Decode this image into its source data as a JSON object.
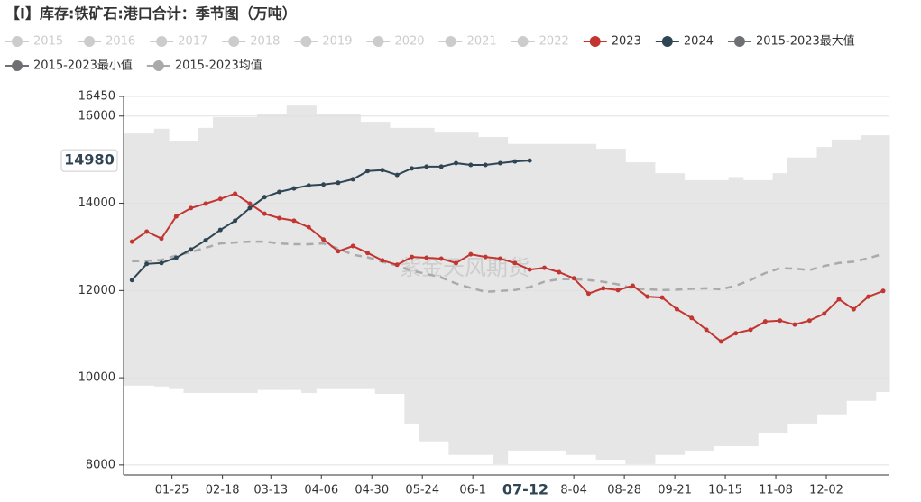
{
  "chart_data": {
    "type": "line",
    "title": "【I】库存:铁矿石:港口合计：季节图（万吨）",
    "watermark": "紫金天风期货",
    "legend_inactive": [
      "2015",
      "2016",
      "2017",
      "2018",
      "2019",
      "2020",
      "2021",
      "2022"
    ],
    "inactive_color": "#cccccc",
    "band": [
      2,
      3
    ],
    "band_color": "#e6e6e6",
    "dashed": [
      4
    ],
    "grid": true,
    "x": [
      6,
      13,
      20,
      27,
      34,
      41,
      48,
      55,
      62,
      69,
      76,
      83,
      90,
      97,
      104,
      111,
      118,
      125,
      132,
      139,
      146,
      153,
      160,
      167,
      174,
      181,
      188,
      195,
      202,
      209,
      216,
      223,
      230,
      237,
      244,
      251,
      258,
      265,
      272,
      279,
      286,
      293,
      300,
      307,
      314,
      321,
      328,
      335,
      342,
      349,
      356,
      363
    ],
    "xlim": [
      2,
      366
    ],
    "xticks": [
      {
        "value": 25,
        "label": "01-25"
      },
      {
        "value": 49,
        "label": "02-18"
      },
      {
        "value": 72,
        "label": "03-13"
      },
      {
        "value": 96,
        "label": "04-06"
      },
      {
        "value": 120,
        "label": "04-30"
      },
      {
        "value": 144,
        "label": "05-24"
      },
      {
        "value": 168,
        "label": "06-1"
      },
      {
        "value": 216,
        "label": "8-04"
      },
      {
        "value": 240,
        "label": "08-28"
      },
      {
        "value": 264,
        "label": "09-21"
      },
      {
        "value": 288,
        "label": "10-15"
      },
      {
        "value": 312,
        "label": "11-08"
      },
      {
        "value": 336,
        "label": "12-02"
      }
    ],
    "ylim": [
      7770,
      16450
    ],
    "yticks": [
      8000,
      10000,
      12000,
      14000,
      16000,
      16450
    ],
    "pointer": {
      "x": {
        "value": 193,
        "label": "07-12"
      },
      "y": 14980
    },
    "series": [
      {
        "name": "2023",
        "color": "#c23531",
        "values": [
          13120,
          13350,
          13190,
          13700,
          13890,
          13990,
          14100,
          14220,
          13990,
          13760,
          13660,
          13600,
          13450,
          13170,
          12900,
          13020,
          12860,
          12690,
          12590,
          12770,
          12750,
          12730,
          12630,
          12830,
          12770,
          12730,
          12630,
          12480,
          12520,
          12420,
          12280,
          11930,
          12050,
          12010,
          12110,
          11860,
          11840,
          11570,
          11370,
          11100,
          10830,
          11020,
          11100,
          11290,
          11310,
          11220,
          11310,
          11470,
          11800,
          11570,
          11860,
          11990
        ]
      },
      {
        "name": "2024",
        "color": "#2f4554",
        "values": [
          12240,
          12610,
          12630,
          12750,
          12940,
          13150,
          13390,
          13600,
          13890,
          14140,
          14260,
          14340,
          14410,
          14430,
          14470,
          14550,
          14740,
          14760,
          14650,
          14800,
          14840,
          14840,
          14920,
          14880,
          14880,
          14920,
          14960,
          14980,
          null,
          null,
          null,
          null,
          null,
          null,
          null,
          null,
          null,
          null,
          null,
          null,
          null,
          null,
          null,
          null,
          null,
          null,
          null,
          null,
          null,
          null,
          null,
          null
        ]
      },
      {
        "name": "2015-2023最大值",
        "color": "#6e7074",
        "values": [
          15600,
          15600,
          15710,
          15420,
          15420,
          15730,
          15975,
          15975,
          15975,
          16040,
          16040,
          16240,
          16240,
          16040,
          16040,
          16040,
          15870,
          15870,
          15730,
          15730,
          15730,
          15620,
          15620,
          15620,
          15520,
          15520,
          15360,
          15360,
          15360,
          15360,
          15360,
          15360,
          15250,
          15250,
          14940,
          14940,
          14690,
          14690,
          14530,
          14530,
          14530,
          14600,
          14530,
          14530,
          14690,
          15050,
          15050,
          15290,
          15460,
          15460,
          15560,
          15560
        ]
      },
      {
        "name": "2015-2023最小值",
        "color": "#6e7074",
        "values": [
          9820,
          9820,
          9800,
          9740,
          9650,
          9650,
          9650,
          9650,
          9650,
          9720,
          9720,
          9720,
          9650,
          9740,
          9740,
          9740,
          9740,
          9630,
          9630,
          8950,
          8540,
          8540,
          8230,
          8230,
          8230,
          8020,
          8330,
          8330,
          8330,
          8330,
          8230,
          8230,
          8120,
          8120,
          8020,
          8020,
          8230,
          8230,
          8330,
          8330,
          8430,
          8430,
          8430,
          8740,
          8740,
          8950,
          8950,
          9160,
          9160,
          9470,
          9470,
          9670
        ]
      },
      {
        "name": "2015-2023均值",
        "color": "#aaaaaa",
        "values": [
          12670,
          12680,
          12700,
          12800,
          12880,
          12980,
          13080,
          13100,
          13120,
          13120,
          13080,
          13060,
          13060,
          13080,
          12960,
          12820,
          12760,
          12660,
          12570,
          12450,
          12380,
          12300,
          12160,
          12060,
          11970,
          11990,
          12010,
          12080,
          12200,
          12260,
          12260,
          12240,
          12200,
          12140,
          12050,
          12030,
          12010,
          12020,
          12040,
          12050,
          12030,
          12110,
          12240,
          12400,
          12510,
          12500,
          12470,
          12560,
          12630,
          12660,
          12740,
          12840
        ]
      }
    ]
  }
}
